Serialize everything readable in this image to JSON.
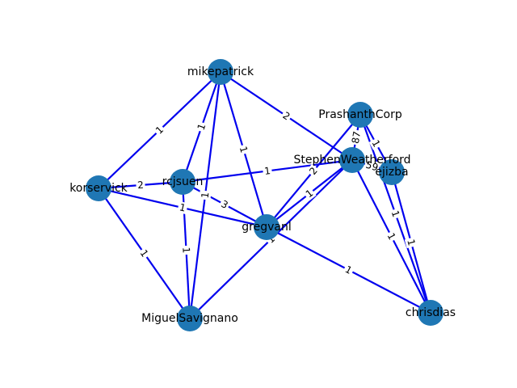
{
  "colors": {
    "node": "#1f77b4",
    "edge": "#0000ee",
    "background": "#ffffff"
  },
  "nodes": [
    {
      "id": "mikepatrick",
      "label": "mikepatrick"
    },
    {
      "id": "korservick",
      "label": "korservick"
    },
    {
      "id": "rcjsuen",
      "label": "rcjsuen"
    },
    {
      "id": "gregvanl",
      "label": "gregvanl"
    },
    {
      "id": "MiguelSavignano",
      "label": "MiguelSavignano"
    },
    {
      "id": "PrashanthCorp",
      "label": "PrashanthCorp"
    },
    {
      "id": "StephenWeatherford",
      "label": "StephenWeatherford"
    },
    {
      "id": "ejizba",
      "label": "ejizba"
    },
    {
      "id": "chrisdias",
      "label": "chrisdias"
    }
  ],
  "edges": [
    {
      "source": "mikepatrick",
      "target": "korservick",
      "weight": "1"
    },
    {
      "source": "mikepatrick",
      "target": "rcjsuen",
      "weight": "1"
    },
    {
      "source": "mikepatrick",
      "target": "MiguelSavignano",
      "weight": "1"
    },
    {
      "source": "mikepatrick",
      "target": "gregvanl",
      "weight": "1"
    },
    {
      "source": "mikepatrick",
      "target": "StephenWeatherford",
      "weight": "2"
    },
    {
      "source": "korservick",
      "target": "rcjsuen",
      "weight": "2"
    },
    {
      "source": "korservick",
      "target": "gregvanl",
      "weight": "1"
    },
    {
      "source": "korservick",
      "target": "MiguelSavignano",
      "weight": "1"
    },
    {
      "source": "rcjsuen",
      "target": "gregvanl",
      "weight": "3"
    },
    {
      "source": "rcjsuen",
      "target": "MiguelSavignano",
      "weight": "1"
    },
    {
      "source": "rcjsuen",
      "target": "StephenWeatherford",
      "weight": "1"
    },
    {
      "source": "gregvanl",
      "target": "PrashanthCorp",
      "weight": "2"
    },
    {
      "source": "gregvanl",
      "target": "StephenWeatherford",
      "weight": "1"
    },
    {
      "source": "gregvanl",
      "target": "chrisdias",
      "weight": "1"
    },
    {
      "source": "MiguelSavignano",
      "target": "StephenWeatherford",
      "weight": "1"
    },
    {
      "source": "PrashanthCorp",
      "target": "StephenWeatherford",
      "weight": "87"
    },
    {
      "source": "PrashanthCorp",
      "target": "ejizba",
      "weight": "1"
    },
    {
      "source": "PrashanthCorp",
      "target": "chrisdias",
      "weight": "1"
    },
    {
      "source": "StephenWeatherford",
      "target": "ejizba",
      "weight": "59"
    },
    {
      "source": "StephenWeatherford",
      "target": "chrisdias",
      "weight": "1"
    },
    {
      "source": "ejizba",
      "target": "chrisdias",
      "weight": "1"
    }
  ]
}
